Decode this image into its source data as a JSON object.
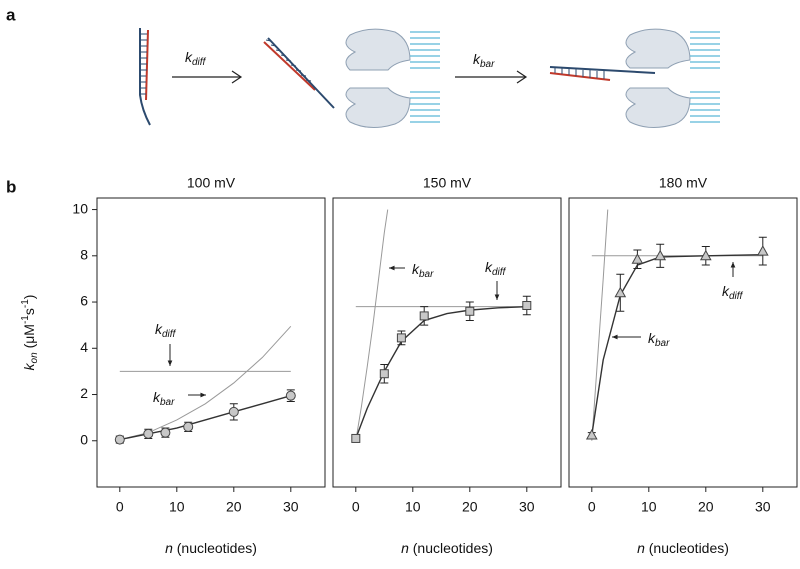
{
  "panel_a": {
    "label": "a",
    "arrows": [
      {
        "k": "k",
        "sub": "diff"
      },
      {
        "k": "k",
        "sub": "bar"
      }
    ]
  },
  "panel_b": {
    "label": "b"
  },
  "chart_data": [
    {
      "type": "scatter",
      "title": "100 mV",
      "xlabel": [
        "n",
        " (nucleotides)"
      ],
      "ylabel": [
        "k",
        "on",
        " (μM",
        "-1",
        "s",
        "-1",
        ")"
      ],
      "xlim": [
        -4,
        36
      ],
      "ylim": [
        -2,
        10.5
      ],
      "xticks": [
        0,
        10,
        20,
        30
      ],
      "yticks": [
        0,
        2,
        4,
        6,
        8,
        10
      ],
      "annotations": [
        {
          "k": "k",
          "sub": "diff"
        },
        {
          "k": "k",
          "sub": "bar"
        }
      ],
      "series": [
        {
          "style": "line",
          "color": "#999999",
          "x": [
            0,
            5,
            10,
            15,
            20,
            25,
            30
          ],
          "values": [
            0.05,
            0.35,
            0.9,
            1.6,
            2.5,
            3.6,
            4.95
          ]
        },
        {
          "style": "line",
          "color": "#999999",
          "x": [
            0,
            30
          ],
          "values": [
            3,
            3
          ]
        },
        {
          "style": "line",
          "color": "#333333",
          "x": [
            0,
            5,
            10,
            15,
            20,
            25,
            30
          ],
          "values": [
            0.05,
            0.3,
            0.55,
            0.9,
            1.25,
            1.6,
            1.95
          ]
        },
        {
          "style": "markers",
          "marker": "circle",
          "color": "#c8c8c8",
          "x": [
            0,
            5,
            8,
            12,
            20,
            30
          ],
          "values": [
            0.05,
            0.3,
            0.35,
            0.6,
            1.25,
            1.95
          ],
          "errors": [
            0.15,
            0.2,
            0.2,
            0.2,
            0.35,
            0.25
          ]
        }
      ]
    },
    {
      "type": "scatter",
      "title": "150 mV",
      "xlabel": [
        "n",
        " (nucleotides)"
      ],
      "xlim": [
        -4,
        36
      ],
      "ylim": [
        -2,
        10.5
      ],
      "xticks": [
        0,
        10,
        20,
        30
      ],
      "annotations": [
        {
          "k": "k",
          "sub": "bar"
        },
        {
          "k": "k",
          "sub": "diff"
        }
      ],
      "series": [
        {
          "style": "line",
          "color": "#999999",
          "x": [
            0,
            1,
            2,
            3,
            4,
            5,
            5.6
          ],
          "values": [
            0,
            1.5,
            3.2,
            5,
            7,
            9,
            10
          ]
        },
        {
          "style": "line",
          "color": "#999999",
          "x": [
            0,
            30
          ],
          "values": [
            5.8,
            5.8
          ]
        },
        {
          "style": "line",
          "color": "#333333",
          "x": [
            0,
            2,
            5,
            8,
            12,
            16,
            20,
            25,
            30
          ],
          "values": [
            0.1,
            1.4,
            3.0,
            4.3,
            5.2,
            5.5,
            5.65,
            5.75,
            5.8
          ]
        },
        {
          "style": "markers",
          "marker": "square",
          "color": "#c8c8c8",
          "x": [
            0,
            5,
            8,
            12,
            20,
            30
          ],
          "values": [
            0.1,
            2.9,
            4.45,
            5.4,
            5.6,
            5.85
          ],
          "errors": [
            0.1,
            0.4,
            0.3,
            0.4,
            0.4,
            0.4
          ]
        }
      ]
    },
    {
      "type": "scatter",
      "title": "180 mV",
      "xlabel": [
        "n",
        " (nucleotides)"
      ],
      "xlim": [
        -4,
        36
      ],
      "ylim": [
        -2,
        10.5
      ],
      "xticks": [
        0,
        10,
        20,
        30
      ],
      "annotations": [
        {
          "k": "k",
          "sub": "bar"
        },
        {
          "k": "k",
          "sub": "diff"
        }
      ],
      "series": [
        {
          "style": "line",
          "color": "#999999",
          "x": [
            0,
            1,
            2,
            2.8
          ],
          "values": [
            0,
            3.5,
            7,
            10
          ]
        },
        {
          "style": "line",
          "color": "#999999",
          "x": [
            0,
            30
          ],
          "values": [
            8,
            8
          ]
        },
        {
          "style": "line",
          "color": "#333333",
          "x": [
            0,
            2,
            5,
            8,
            12,
            20,
            30
          ],
          "values": [
            0.25,
            3.5,
            6.3,
            7.6,
            7.95,
            8.0,
            8.05
          ]
        },
        {
          "style": "markers",
          "marker": "triangle",
          "color": "#c8c8c8",
          "x": [
            0,
            5,
            8,
            12,
            20,
            30
          ],
          "values": [
            0.25,
            6.4,
            7.85,
            8.0,
            8.0,
            8.2
          ],
          "errors": [
            0.1,
            0.8,
            0.4,
            0.5,
            0.4,
            0.6
          ]
        }
      ]
    }
  ]
}
